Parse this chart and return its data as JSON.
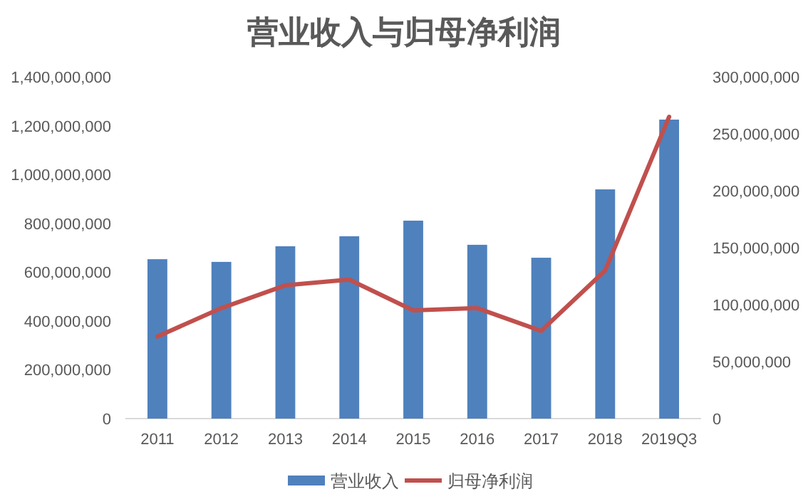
{
  "chart_data": {
    "type": "bar",
    "title": "营业收入与归母净利润",
    "categories": [
      "2011",
      "2012",
      "2013",
      "2014",
      "2015",
      "2016",
      "2017",
      "2018",
      "2019Q3"
    ],
    "series": [
      {
        "name": "营业收入",
        "color": "#4f81bd",
        "values": [
          653000000,
          642000000,
          706000000,
          747000000,
          811000000,
          712000000,
          659000000,
          939000000,
          1225000000
        ]
      },
      {
        "name": "归母净利润",
        "type": "line",
        "axis": "y2",
        "color": "#c0504d",
        "values": [
          72000000,
          97000000,
          117000000,
          122000000,
          95000000,
          97000000,
          77000000,
          130000000,
          265000000
        ]
      }
    ],
    "ylim": [
      0,
      1400000000
    ],
    "yticks": [
      {
        "value": 0,
        "label": "0"
      },
      {
        "value": 200000000,
        "label": "200,000,000"
      },
      {
        "value": 400000000,
        "label": "400,000,000"
      },
      {
        "value": 600000000,
        "label": "600,000,000"
      },
      {
        "value": 800000000,
        "label": "800,000,000"
      },
      {
        "value": 1000000000,
        "label": "1,000,000,000"
      },
      {
        "value": 1200000000,
        "label": "1,200,000,000"
      },
      {
        "value": 1400000000,
        "label": "1,400,000,000"
      }
    ],
    "y2lim": [
      0,
      300000000
    ],
    "y2ticks": [
      {
        "value": 0,
        "label": "0"
      },
      {
        "value": 50000000,
        "label": "50,000,000"
      },
      {
        "value": 100000000,
        "label": "100,000,000"
      },
      {
        "value": 150000000,
        "label": "150,000,000"
      },
      {
        "value": 200000000,
        "label": "200,000,000"
      },
      {
        "value": 250000000,
        "label": "250,000,000"
      },
      {
        "value": 300000000,
        "label": "300,000,000"
      }
    ],
    "grid": false,
    "legend": "bottom",
    "marker": "none",
    "line_style": "solid"
  }
}
